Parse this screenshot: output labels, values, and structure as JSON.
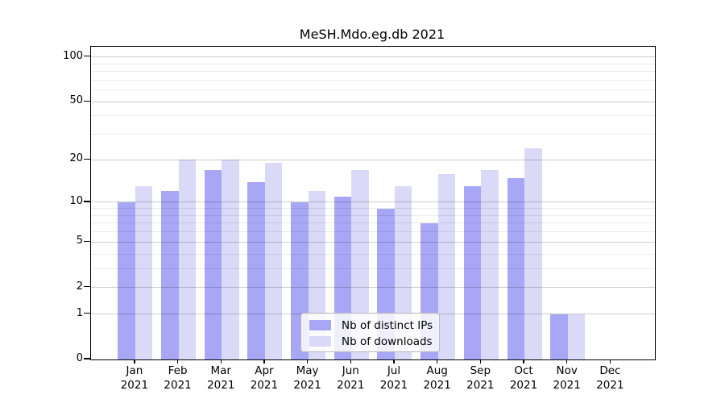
{
  "title": "MeSH.Mdo.eg.db 2021",
  "chart_data": {
    "type": "bar",
    "title": "MeSH.Mdo.eg.db 2021",
    "scale": "log1p",
    "grid": "horizontal",
    "legend_position": "inside-bottom-center",
    "categories": [
      "Jan",
      "Feb",
      "Mar",
      "Apr",
      "May",
      "Jun",
      "Jul",
      "Aug",
      "Sep",
      "Oct",
      "Nov",
      "Dec"
    ],
    "category_year": "2021",
    "series": [
      {
        "name": "Nb of distinct IPs",
        "color": "#a7a7f5",
        "values": [
          10,
          12,
          17,
          14,
          10,
          11,
          9,
          7,
          13,
          15,
          1,
          0
        ]
      },
      {
        "name": "Nb of downloads",
        "color": "#dadaf8",
        "values": [
          13,
          20,
          20,
          19,
          12,
          17,
          13,
          16,
          17,
          24,
          1,
          0
        ]
      }
    ],
    "y_ticks": [
      0,
      1,
      2,
      5,
      10,
      20,
      50,
      100
    ],
    "y_minor_gridlines": [
      3,
      4,
      6,
      7,
      8,
      9,
      30,
      40,
      60,
      70,
      80,
      90
    ],
    "ylim": [
      0,
      117
    ],
    "xlabel": "",
    "ylabel": ""
  },
  "colors": {
    "axis": "#000000",
    "major_grid": "#cccccc",
    "minor_grid": "#ebebeb",
    "background": "#ffffff"
  }
}
